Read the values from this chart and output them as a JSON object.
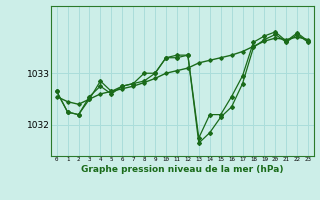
{
  "xlabel": "Graphe pression niveau de la mer (hPa)",
  "background_color": "#cceee8",
  "grid_color": "#aaddda",
  "line_color": "#1a6b1a",
  "x_ticks": [
    0,
    1,
    2,
    3,
    4,
    5,
    6,
    7,
    8,
    9,
    10,
    11,
    12,
    13,
    14,
    15,
    16,
    17,
    18,
    19,
    20,
    21,
    22,
    23
  ],
  "ylim": [
    1031.4,
    1034.3
  ],
  "yticks": [
    1032,
    1033
  ],
  "series1_smooth": [
    1032.55,
    1032.45,
    1032.4,
    1032.5,
    1032.6,
    1032.65,
    1032.7,
    1032.75,
    1032.82,
    1032.9,
    1033.0,
    1033.05,
    1033.1,
    1033.2,
    1033.25,
    1033.3,
    1033.35,
    1033.42,
    1033.52,
    1033.62,
    1033.68,
    1033.65,
    1033.7,
    1033.65
  ],
  "series2": [
    1032.65,
    1032.25,
    1032.2,
    1032.55,
    1032.75,
    1032.6,
    1032.75,
    1032.8,
    1032.85,
    1033.0,
    1033.3,
    1033.3,
    1033.35,
    1031.65,
    1031.85,
    1032.15,
    1032.35,
    1032.8,
    1033.5,
    1033.65,
    1033.75,
    1033.6,
    1033.75,
    1033.6
  ],
  "series3": [
    1032.65,
    1032.25,
    1032.2,
    1032.5,
    1032.85,
    1032.65,
    1032.75,
    1032.8,
    1033.0,
    1033.0,
    1033.3,
    1033.35,
    1033.35,
    1031.75,
    1032.2,
    1032.2,
    1032.55,
    1032.95,
    1033.6,
    1033.72,
    1033.8,
    1033.62,
    1033.78,
    1033.62
  ]
}
